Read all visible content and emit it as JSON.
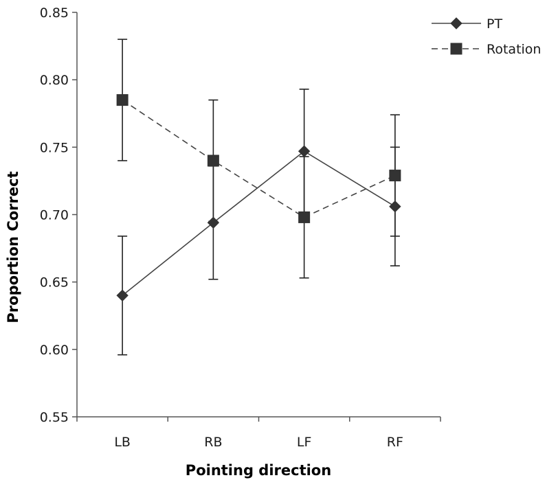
{
  "chart_data": {
    "type": "line",
    "title": "",
    "xlabel": "Pointing direction",
    "ylabel": "Proportion Correct",
    "categories": [
      "LB",
      "RB",
      "LF",
      "RF"
    ],
    "ylim": [
      0.55,
      0.85
    ],
    "yticks": [
      0.55,
      0.6,
      0.65,
      0.7,
      0.75,
      0.8,
      0.85
    ],
    "ytick_labels": [
      "0.55",
      "0.60",
      "0.65",
      "0.70",
      "0.75",
      "0.80",
      "0.85"
    ],
    "grid": false,
    "legend_position": "top-right",
    "series": [
      {
        "name": "PT",
        "line_style": "solid",
        "marker": "diamond",
        "color": "#333333",
        "values": [
          0.64,
          0.694,
          0.747,
          0.706
        ],
        "error_low": [
          0.596,
          0.652,
          0.7,
          0.662
        ],
        "error_high": [
          0.684,
          0.736,
          0.793,
          0.75
        ]
      },
      {
        "name": "Rotation",
        "line_style": "dashed",
        "marker": "square",
        "color": "#333333",
        "values": [
          0.785,
          0.74,
          0.698,
          0.729
        ],
        "error_low": [
          0.74,
          0.695,
          0.653,
          0.684
        ],
        "error_high": [
          0.83,
          0.785,
          0.743,
          0.774
        ]
      }
    ]
  }
}
